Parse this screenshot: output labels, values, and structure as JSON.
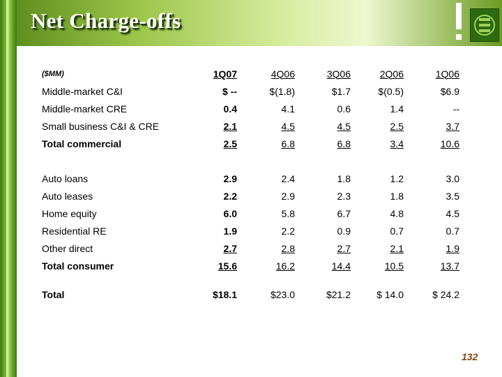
{
  "slide": {
    "title": "Net Charge-offs",
    "page_number": "132",
    "colors": {
      "header_green": "#6b9b22",
      "logo_green": "#2e6a10",
      "page_number": "#7a4a12"
    }
  },
  "table": {
    "unit": "($MM)",
    "columns": [
      "1Q07",
      "4Q06",
      "3Q06",
      "2Q06",
      "1Q06"
    ],
    "rows": [
      {
        "label": "Middle-market C&I",
        "values": [
          "$ --",
          "$(1.8)",
          "$1.7",
          "$(0.5)",
          "$6.9"
        ]
      },
      {
        "label": "Middle-market CRE",
        "values": [
          "0.4",
          "4.1",
          "0.6",
          "1.4",
          "--"
        ]
      },
      {
        "label": "Small business C&I & CRE",
        "values": [
          "2.1",
          "4.5",
          "4.5",
          "2.5",
          "3.7"
        ]
      },
      {
        "label": "Total commercial",
        "values": [
          "2.5",
          "6.8",
          "6.8",
          "3.4",
          "10.6"
        ]
      },
      {
        "label": "Auto loans",
        "values": [
          "2.9",
          "2.4",
          "1.8",
          "1.2",
          "3.0"
        ]
      },
      {
        "label": "Auto leases",
        "values": [
          "2.2",
          "2.9",
          "2.3",
          "1.8",
          "3.5"
        ]
      },
      {
        "label": "Home equity",
        "values": [
          "6.0",
          "5.8",
          "6.7",
          "4.8",
          "4.5"
        ]
      },
      {
        "label": "Residential RE",
        "values": [
          "1.9",
          "2.2",
          "0.9",
          "0.7",
          "0.7"
        ]
      },
      {
        "label": "Other direct",
        "values": [
          "2.7",
          "2.8",
          "2.7",
          "2.1",
          "1.9"
        ]
      },
      {
        "label": "Total consumer",
        "values": [
          "15.6",
          "16.2",
          "14.4",
          "10.5",
          "13.7"
        ]
      },
      {
        "label": "Total",
        "values": [
          "$18.1",
          "$23.0",
          "$21.2",
          "$ 14.0",
          "$ 24.2"
        ]
      }
    ]
  }
}
